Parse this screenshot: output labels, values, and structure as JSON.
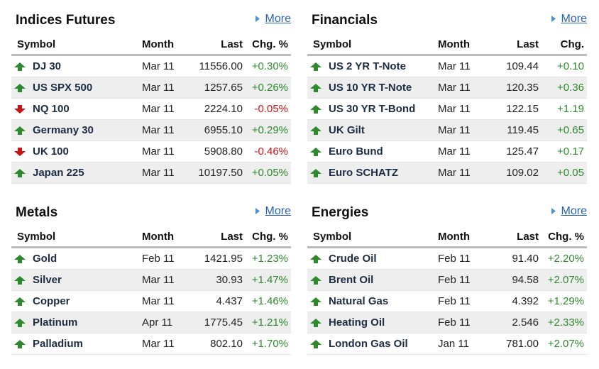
{
  "panels": [
    {
      "title": "Indices Futures",
      "more": "More",
      "columns": [
        "Symbol",
        "Month",
        "Last",
        "Chg. %"
      ],
      "rows": [
        {
          "symbol": "DJ 30",
          "month": "Mar 11",
          "last": "11556.00",
          "change": "+0.30%"
        },
        {
          "symbol": "US SPX 500",
          "month": "Mar 11",
          "last": "1257.65",
          "change": "+0.26%"
        },
        {
          "symbol": "NQ 100",
          "month": "Mar 11",
          "last": "2224.10",
          "change": "-0.05%"
        },
        {
          "symbol": "Germany 30",
          "month": "Mar 11",
          "last": "6955.10",
          "change": "+0.29%"
        },
        {
          "symbol": "UK 100",
          "month": "Mar 11",
          "last": "5908.80",
          "change": "-0.46%"
        },
        {
          "symbol": "Japan 225",
          "month": "Mar 11",
          "last": "10197.50",
          "change": "+0.05%"
        }
      ]
    },
    {
      "title": "Financials",
      "more": "More",
      "columns": [
        "Symbol",
        "Month",
        "Last",
        "Chg."
      ],
      "rows": [
        {
          "symbol": "US 2 YR T-Note",
          "month": "Mar 11",
          "last": "109.44",
          "change": "+0.10"
        },
        {
          "symbol": "US 10 YR T-Note",
          "month": "Mar 11",
          "last": "120.35",
          "change": "+0.36"
        },
        {
          "symbol": "US 30 YR T-Bond",
          "month": "Mar 11",
          "last": "122.15",
          "change": "+1.19"
        },
        {
          "symbol": "UK Gilt",
          "month": "Mar 11",
          "last": "119.45",
          "change": "+0.65"
        },
        {
          "symbol": "Euro Bund",
          "month": "Mar 11",
          "last": "125.47",
          "change": "+0.17"
        },
        {
          "symbol": "Euro SCHATZ",
          "month": "Mar 11",
          "last": "109.02",
          "change": "+0.05"
        }
      ]
    },
    {
      "title": "Metals",
      "more": "More",
      "columns": [
        "Symbol",
        "Month",
        "Last",
        "Chg. %"
      ],
      "rows": [
        {
          "symbol": "Gold",
          "month": "Feb 11",
          "last": "1421.95",
          "change": "+1.23%"
        },
        {
          "symbol": "Silver",
          "month": "Mar 11",
          "last": "30.93",
          "change": "+1.47%"
        },
        {
          "symbol": "Copper",
          "month": "Mar 11",
          "last": "4.437",
          "change": "+1.46%"
        },
        {
          "symbol": "Platinum",
          "month": "Apr 11",
          "last": "1775.45",
          "change": "+1.21%"
        },
        {
          "symbol": "Palladium",
          "month": "Mar 11",
          "last": "802.10",
          "change": "+1.70%"
        }
      ]
    },
    {
      "title": "Energies",
      "more": "More",
      "columns": [
        "Symbol",
        "Month",
        "Last",
        "Chg. %"
      ],
      "rows": [
        {
          "symbol": "Crude Oil",
          "month": "Feb 11",
          "last": "91.40",
          "change": "+2.20%"
        },
        {
          "symbol": "Brent Oil",
          "month": "Feb 11",
          "last": "94.58",
          "change": "+2.07%"
        },
        {
          "symbol": "Natural Gas",
          "month": "Feb 11",
          "last": "4.392",
          "change": "+1.29%"
        },
        {
          "symbol": "Heating Oil",
          "month": "Feb 11",
          "last": "2.546",
          "change": "+2.33%"
        },
        {
          "symbol": "London Gas Oil",
          "month": "Jan 11",
          "last": "781.00",
          "change": "+2.07%"
        }
      ]
    }
  ]
}
